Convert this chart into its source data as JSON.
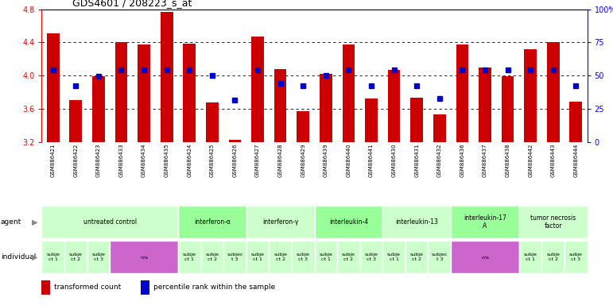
{
  "title": "GDS4601 / 208223_s_at",
  "samples": [
    "GSM886421",
    "GSM886422",
    "GSM886423",
    "GSM886433",
    "GSM886434",
    "GSM886435",
    "GSM886424",
    "GSM886425",
    "GSM886426",
    "GSM886427",
    "GSM886428",
    "GSM886429",
    "GSM886439",
    "GSM886440",
    "GSM886441",
    "GSM886430",
    "GSM886431",
    "GSM886432",
    "GSM886436",
    "GSM886437",
    "GSM886438",
    "GSM886442",
    "GSM886443",
    "GSM886444"
  ],
  "bar_values": [
    4.51,
    3.7,
    3.99,
    4.4,
    4.37,
    4.77,
    4.38,
    3.67,
    3.22,
    4.47,
    4.08,
    3.57,
    4.02,
    4.37,
    3.72,
    4.07,
    3.73,
    3.53,
    4.37,
    4.1,
    3.99,
    4.32,
    4.4,
    3.68
  ],
  "blue_dot_values": [
    4.07,
    3.88,
    3.99,
    4.07,
    4.07,
    4.07,
    4.07,
    4.0,
    3.7,
    4.07,
    3.9,
    3.88,
    4.0,
    4.07,
    3.88,
    4.07,
    3.88,
    3.72,
    4.07,
    4.07,
    4.07,
    4.07,
    4.07,
    3.88
  ],
  "ymin": 3.2,
  "ymax": 4.8,
  "yticks_left": [
    3.2,
    3.6,
    4.0,
    4.4,
    4.8
  ],
  "ytick_labels_left": [
    "3.2",
    "3.6",
    "4.0",
    "4.4",
    "4.8"
  ],
  "ytick_pct": [
    0,
    25,
    50,
    75,
    100
  ],
  "ytick_labels_right": [
    "0",
    "25",
    "50",
    "75",
    "100%"
  ],
  "dotted_lines": [
    3.6,
    4.0,
    4.4
  ],
  "bar_color": "#cc0000",
  "dot_color": "#0000cc",
  "agent_groups": [
    {
      "label": "untreated control",
      "start": 0,
      "end": 6,
      "color": "#ccffcc"
    },
    {
      "label": "interferon-α",
      "start": 6,
      "end": 9,
      "color": "#99ff99"
    },
    {
      "label": "interferon-γ",
      "start": 9,
      "end": 12,
      "color": "#ccffcc"
    },
    {
      "label": "interleukin-4",
      "start": 12,
      "end": 15,
      "color": "#99ff99"
    },
    {
      "label": "interleukin-13",
      "start": 15,
      "end": 18,
      "color": "#ccffcc"
    },
    {
      "label": "interleukin-17\nA",
      "start": 18,
      "end": 21,
      "color": "#99ff99"
    },
    {
      "label": "tumor necrosis\nfactor",
      "start": 21,
      "end": 24,
      "color": "#ccffcc"
    }
  ],
  "individual_groups": [
    {
      "label": "subje\nct 1",
      "start": 0,
      "end": 1,
      "color": "#ccffcc"
    },
    {
      "label": "subje\nct 2",
      "start": 1,
      "end": 2,
      "color": "#ccffcc"
    },
    {
      "label": "subje\nct 3",
      "start": 2,
      "end": 3,
      "color": "#ccffcc"
    },
    {
      "label": "n/a",
      "start": 3,
      "end": 6,
      "color": "#cc66cc"
    },
    {
      "label": "subje\nct 1",
      "start": 6,
      "end": 7,
      "color": "#ccffcc"
    },
    {
      "label": "subje\nct 2",
      "start": 7,
      "end": 8,
      "color": "#ccffcc"
    },
    {
      "label": "subjec\nt 3",
      "start": 8,
      "end": 9,
      "color": "#ccffcc"
    },
    {
      "label": "subje\nct 1",
      "start": 9,
      "end": 10,
      "color": "#ccffcc"
    },
    {
      "label": "subje\nct 2",
      "start": 10,
      "end": 11,
      "color": "#ccffcc"
    },
    {
      "label": "subje\nct 3",
      "start": 11,
      "end": 12,
      "color": "#ccffcc"
    },
    {
      "label": "subje\nct 1",
      "start": 12,
      "end": 13,
      "color": "#ccffcc"
    },
    {
      "label": "subje\nct 2",
      "start": 13,
      "end": 14,
      "color": "#ccffcc"
    },
    {
      "label": "subje\nct 3",
      "start": 14,
      "end": 15,
      "color": "#ccffcc"
    },
    {
      "label": "subje\nct 1",
      "start": 15,
      "end": 16,
      "color": "#ccffcc"
    },
    {
      "label": "subje\nct 2",
      "start": 16,
      "end": 17,
      "color": "#ccffcc"
    },
    {
      "label": "subjec\nt 3",
      "start": 17,
      "end": 18,
      "color": "#ccffcc"
    },
    {
      "label": "n/a",
      "start": 18,
      "end": 21,
      "color": "#cc66cc"
    },
    {
      "label": "subje\nct 1",
      "start": 21,
      "end": 22,
      "color": "#ccffcc"
    },
    {
      "label": "subje\nct 2",
      "start": 22,
      "end": 23,
      "color": "#ccffcc"
    },
    {
      "label": "subje\nct 3",
      "start": 23,
      "end": 24,
      "color": "#ccffcc"
    }
  ],
  "bg_color": "#ffffff",
  "sample_bg": "#c8c8c8"
}
